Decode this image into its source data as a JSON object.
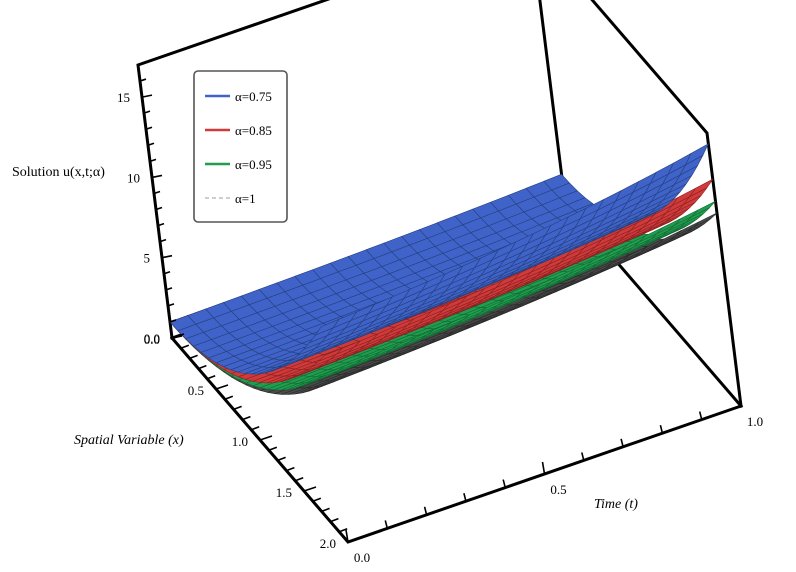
{
  "chart_data": {
    "type": "surface3d",
    "title": "",
    "zlabel": "Solution u(x,t;α)",
    "xlabel": "Spatial Variable (x)",
    "tlabel": "Time (t)",
    "x_range": [
      0,
      2
    ],
    "t_range": [
      0,
      1
    ],
    "z_range": [
      0,
      17
    ],
    "x_ticks": [
      {
        "value": 0,
        "label": "0.0"
      },
      {
        "value": 0.5,
        "label": "0.5"
      },
      {
        "value": 1,
        "label": "1.0"
      },
      {
        "value": 1.5,
        "label": "1.5"
      },
      {
        "value": 2,
        "label": "2.0"
      }
    ],
    "t_ticks": [
      {
        "value": 0,
        "label": "0.0"
      },
      {
        "value": 0.5,
        "label": "0.5"
      },
      {
        "value": 1,
        "label": "1.0"
      }
    ],
    "z_ticks": [
      {
        "value": 0,
        "label": "0.0"
      },
      {
        "value": 5,
        "label": "5"
      },
      {
        "value": 10,
        "label": "10"
      },
      {
        "value": 15,
        "label": "15"
      }
    ],
    "series": [
      {
        "name": "α=1",
        "alpha": 1.0,
        "color": "#4a4a4a",
        "edge": "#2c2c2c",
        "style": "dashed",
        "corner_value": 11.5
      },
      {
        "name": "α=0.95",
        "alpha": 0.95,
        "color": "#1f9e4f",
        "edge": "#156b35",
        "style": "solid",
        "corner_value": 12.2
      },
      {
        "name": "α=0.85",
        "alpha": 0.85,
        "color": "#d13a3a",
        "edge": "#8a2222",
        "style": "solid",
        "corner_value": 13.5
      },
      {
        "name": "α=0.75",
        "alpha": 0.75,
        "color": "#3f63c9",
        "edge": "#26407f",
        "style": "solid",
        "corner_value": 15.6
      }
    ],
    "legend": {
      "position": "top-left",
      "entries": [
        {
          "label": "α=0.75",
          "color": "#3f63c9",
          "style": "solid"
        },
        {
          "label": "α=0.85",
          "color": "#d13a3a",
          "style": "solid"
        },
        {
          "label": "α=0.95",
          "color": "#1f9e4f",
          "style": "solid"
        },
        {
          "label": "α=1",
          "color": "#b0b0b0",
          "style": "dashed"
        }
      ]
    }
  }
}
